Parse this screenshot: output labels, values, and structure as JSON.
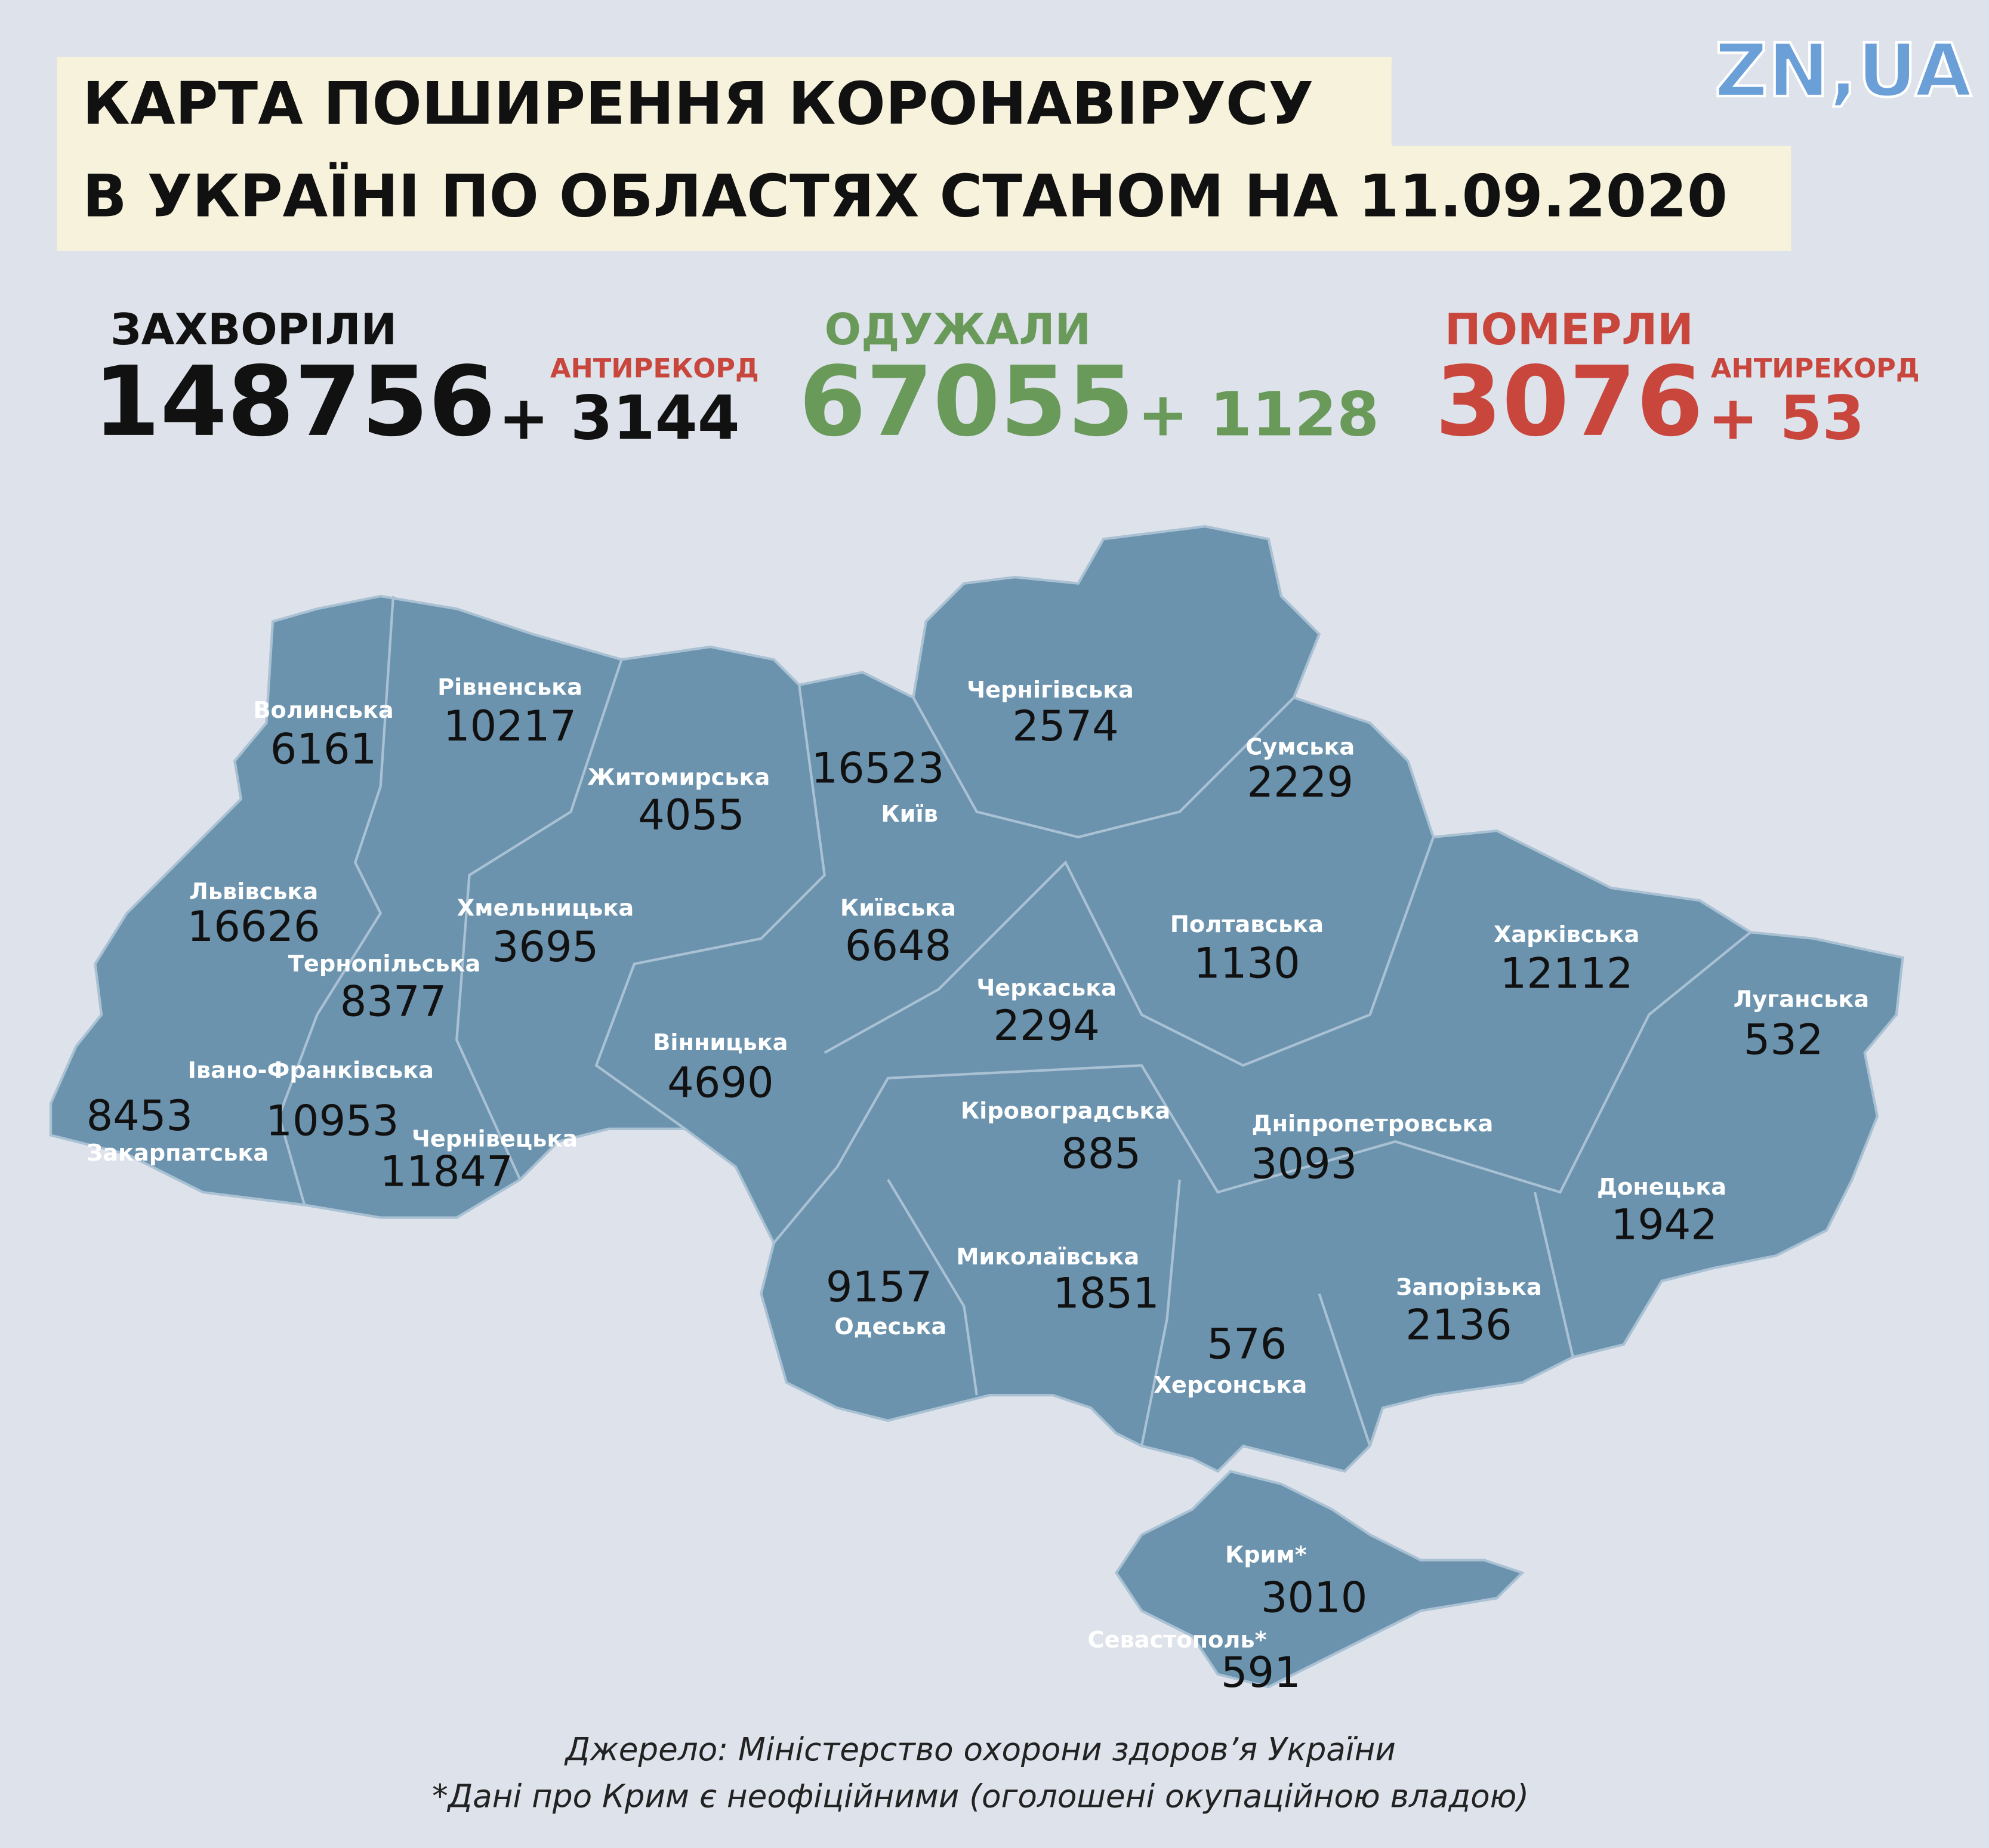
{
  "header": {
    "logo": "ZN,UA",
    "title_lines": [
      "КАРТА ПОШИРЕННЯ КОРОНАВІРУСУ",
      "В УКРАЇНІ ПО ОБЛАСТЯХ СТАНОМ НА 11.09.2020"
    ]
  },
  "stats": [
    {
      "label": "ЗАХВОРІЛИ",
      "total": "148756",
      "change": "+ 3144",
      "note": "АНТИРЕКОРД"
    },
    {
      "label": "ОДУЖАЛИ",
      "total": "67055",
      "change": "+ 1128"
    },
    {
      "label": "ПОМЕРЛИ",
      "total": "3076",
      "change": "+ 53",
      "note": "АНТИРЕКОРД"
    }
  ],
  "regions": [
    {
      "name": "Волинська",
      "value": "6161"
    },
    {
      "name": "Рівненська",
      "value": "10217"
    },
    {
      "name": "Житомирська",
      "value": "4055"
    },
    {
      "name": "Київ",
      "value": "16523"
    },
    {
      "name": "Чернігівська",
      "value": "2574"
    },
    {
      "name": "Сумська",
      "value": "2229"
    },
    {
      "name": "Львівська",
      "value": "16626"
    },
    {
      "name": "Хмельницька",
      "value": "3695"
    },
    {
      "name": "Київська",
      "value": "6648"
    },
    {
      "name": "Полтавська",
      "value": "1130"
    },
    {
      "name": "Харківська",
      "value": "12112"
    },
    {
      "name": "Тернопільська",
      "value": "8377"
    },
    {
      "name": "Черкаська",
      "value": "2294"
    },
    {
      "name": "Луганська",
      "value": "532"
    },
    {
      "name": "Вінницька",
      "value": "4690"
    },
    {
      "name": "Закарпатська",
      "value": "8453"
    },
    {
      "name": "Івано-Франківська",
      "value": "10953"
    },
    {
      "name": "Чернівецька",
      "value": "11847"
    },
    {
      "name": "Кіровоградська",
      "value": "885"
    },
    {
      "name": "Дніпропетровська",
      "value": "3093"
    },
    {
      "name": "Донецька",
      "value": "1942"
    },
    {
      "name": "Одеська",
      "value": "9157"
    },
    {
      "name": "Миколаївська",
      "value": "1851"
    },
    {
      "name": "Запорізька",
      "value": "2136"
    },
    {
      "name": "Херсонська",
      "value": "576"
    },
    {
      "name": "Крим*",
      "value": "3010"
    },
    {
      "name": "Севастополь*",
      "value": "591"
    }
  ],
  "footer": {
    "source": "Джерело: Міністерство охорони здоров’я України",
    "note": "*Дані про Крим є неофіційними (оголошені окупаційною владою)"
  }
}
